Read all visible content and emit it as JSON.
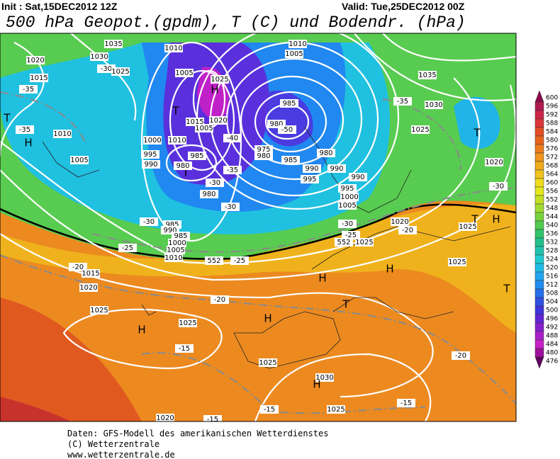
{
  "header": {
    "init": "Init : Sat,15DEC2012 12Z",
    "valid": "Valid: Tue,25DEC2012 00Z",
    "title": "500 hPa Geopot.(gpdm), T (C) und Bodendr. (hPa)"
  },
  "map": {
    "labels": [
      "1035",
      "1010",
      "1010",
      "1005",
      "1030",
      "1020",
      "-30",
      "1025",
      "1005",
      "1025",
      "1015",
      "-35",
      "H",
      "T",
      "985",
      "1020",
      "1015",
      "1005",
      "-40",
      "980",
      "-50",
      "T",
      "H",
      "-35",
      "1010",
      "1000",
      "1010",
      "995",
      "985",
      "990",
      "T",
      "980",
      "-35",
      "1005",
      "-30",
      "980",
      "-30",
      "975",
      "980",
      "985",
      "980",
      "990",
      "990",
      "990",
      "995",
      "995",
      "1000",
      "1005",
      "985",
      "990",
      "985",
      "1000",
      "1005",
      "1010",
      "552",
      "-30",
      "-25",
      "-25",
      "-20",
      "1015",
      "1020",
      "H",
      "H",
      "-30",
      "-25",
      "552",
      "1025",
      "1020",
      "-20",
      "1025",
      "T",
      "H",
      "1025",
      "T",
      "1035",
      "1030",
      "-35",
      "1025",
      "T",
      "1020",
      "-30",
      "-20",
      "1025",
      "T",
      "H",
      "1025",
      "H",
      "-15",
      "1025",
      "1030",
      "H",
      "-20",
      "-15",
      "-15",
      "1025",
      "1020",
      "-15"
    ]
  },
  "colorbar": {
    "levels": [
      600,
      596,
      592,
      588,
      584,
      580,
      576,
      572,
      568,
      564,
      560,
      556,
      552,
      548,
      544,
      540,
      536,
      532,
      528,
      524,
      520,
      516,
      512,
      508,
      504,
      500,
      496,
      492,
      488,
      484,
      480,
      476
    ],
    "colors": [
      "#8c0a4a",
      "#b0184e",
      "#cc2448",
      "#dc3438",
      "#e44c24",
      "#e8641c",
      "#ec7c1c",
      "#f0941c",
      "#f0ac1c",
      "#f0c41c",
      "#f0dc1c",
      "#e4e81c",
      "#c4e024",
      "#a0dc30",
      "#78d43c",
      "#50cc50",
      "#30c46c",
      "#20c08c",
      "#20c4ac",
      "#20ccd0",
      "#20bce8",
      "#20a4f0",
      "#208cf0",
      "#2470ec",
      "#3050e4",
      "#4034dc",
      "#6024d4",
      "#8420cc",
      "#a820c8",
      "#c820c8",
      "#a0109c",
      "#600060"
    ]
  },
  "footer": [
    "Daten: GFS-Modell des amerikanischen Wetterdienstes",
    "(C) Wetterzentrale",
    "www.wetterzentrale.de"
  ]
}
